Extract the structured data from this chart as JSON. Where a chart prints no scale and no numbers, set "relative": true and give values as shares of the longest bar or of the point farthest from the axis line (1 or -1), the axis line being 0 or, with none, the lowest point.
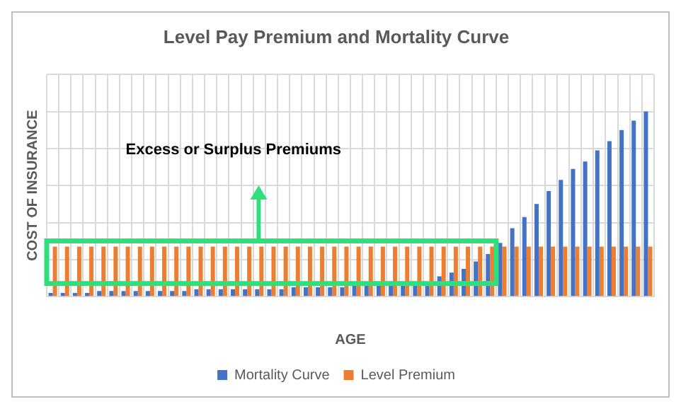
{
  "chart_data": {
    "type": "bar",
    "title": "Level Pay Premium and Mortality Curve",
    "xlabel": "AGE",
    "ylabel": "COST OF INSURANCE",
    "relative": true,
    "grid": true,
    "legend": "bottom",
    "annotations": [
      "Excess or Surplus Premiums"
    ],
    "categories": [
      null,
      null,
      null,
      null,
      null,
      null,
      null,
      null,
      null,
      null,
      null,
      null,
      null,
      null,
      null,
      null,
      null,
      null,
      null,
      null,
      null,
      null,
      null,
      null,
      null,
      null,
      null,
      null,
      null,
      null,
      null,
      null,
      null,
      null,
      null,
      null,
      null,
      null,
      null,
      null,
      null,
      null,
      null,
      null,
      null,
      null,
      null,
      null,
      null,
      null
    ],
    "series": [
      {
        "name": "Mortality Curve",
        "color": "#4472c4",
        "values": [
          0.02,
          0.02,
          0.02,
          0.02,
          0.03,
          0.03,
          0.03,
          0.03,
          0.03,
          0.03,
          0.03,
          0.03,
          0.04,
          0.04,
          0.04,
          0.04,
          0.04,
          0.04,
          0.04,
          0.04,
          0.05,
          0.05,
          0.05,
          0.05,
          0.05,
          0.06,
          0.06,
          0.07,
          0.07,
          0.07,
          0.08,
          0.08,
          0.11,
          0.13,
          0.15,
          0.19,
          0.23,
          0.29,
          0.37,
          0.43,
          0.5,
          0.57,
          0.63,
          0.69,
          0.73,
          0.79,
          0.84,
          0.9,
          0.95,
          1
        ]
      },
      {
        "name": "Level Premium",
        "color": "#ed7d31",
        "values": [
          0.27,
          0.27,
          0.27,
          0.27,
          0.27,
          0.27,
          0.27,
          0.27,
          0.27,
          0.27,
          0.27,
          0.27,
          0.27,
          0.27,
          0.27,
          0.27,
          0.27,
          0.27,
          0.27,
          0.27,
          0.27,
          0.27,
          0.27,
          0.27,
          0.27,
          0.27,
          0.27,
          0.27,
          0.27,
          0.27,
          0.27,
          0.27,
          0.27,
          0.27,
          0.27,
          0.27,
          0.27,
          0.27,
          0.27,
          0.27,
          0.27,
          0.27,
          0.27,
          0.27,
          0.27,
          0.27,
          0.27,
          0.27,
          0.27,
          0.27
        ]
      }
    ]
  }
}
